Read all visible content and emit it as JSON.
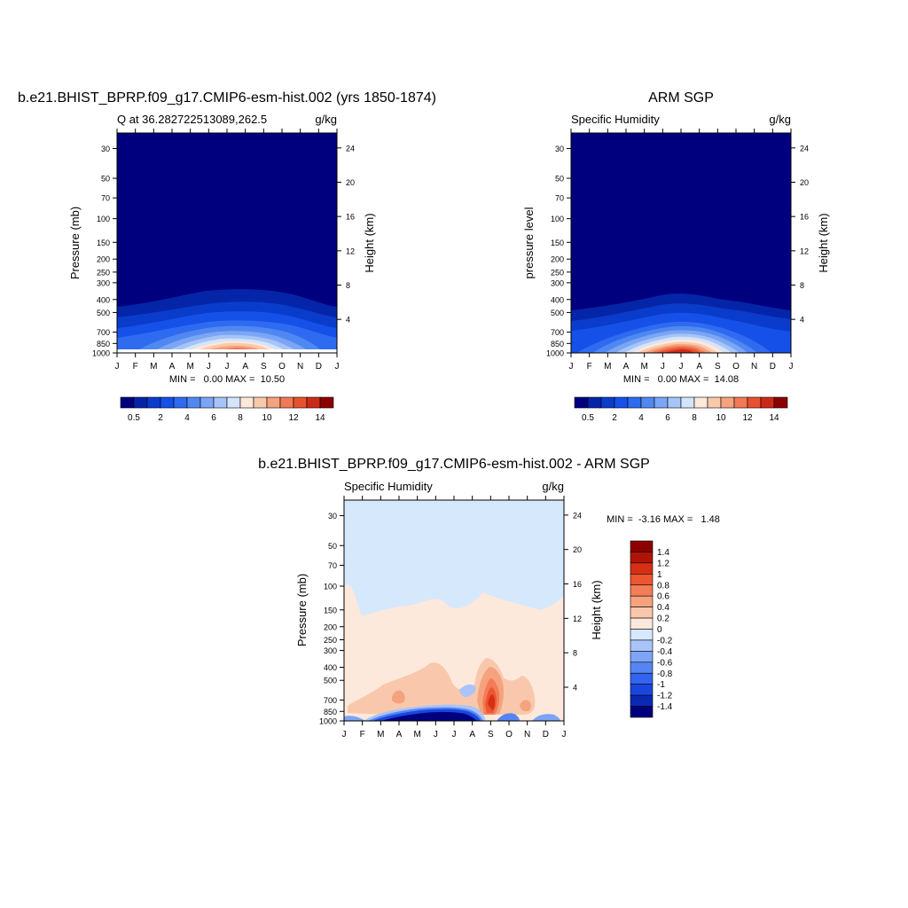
{
  "chart_data": [
    {
      "type": "heatmap",
      "title": "b.e21.BHIST_BPRP.f09_g17.CMIP6-esm-hist.002 (yrs 1850-1874)",
      "subtitle_left": "Q at 36.282722513089,262.5",
      "subtitle_right": "g/kg",
      "ylabel": "Pressure (mb)",
      "y2label": "Height (km)",
      "x_ticks": [
        "J",
        "F",
        "M",
        "A",
        "M",
        "J",
        "J",
        "A",
        "S",
        "O",
        "N",
        "D",
        "J"
      ],
      "y_ticks": [
        "30",
        "50",
        "70",
        "100",
        "150",
        "200",
        "250",
        "300",
        "400",
        "500",
        "700",
        "850",
        "1000"
      ],
      "y2_ticks": [
        "24",
        "20",
        "16",
        "12",
        "8",
        "4"
      ],
      "minmax_text": "MIN =   0.00 MAX =  10.50",
      "min": 0.0,
      "max": 10.5,
      "levels": [
        0.5,
        1,
        2,
        3,
        4,
        5,
        6,
        7,
        8,
        9,
        10,
        11,
        12,
        13,
        14
      ],
      "colorbar_labels": [
        "0.5",
        "2",
        "4",
        "6",
        "8",
        "10",
        "12",
        "14"
      ],
      "colors": [
        "#00007f",
        "#0525a8",
        "#0a3ccc",
        "#1551e8",
        "#2f6bf0",
        "#5088f2",
        "#7ba5f5",
        "#a6c4f7",
        "#d3e4fb",
        "#fde8da",
        "#f9c9ac",
        "#f5a27e",
        "#f07a55",
        "#e8512f",
        "#cc2a18",
        "#8c0000"
      ]
    },
    {
      "type": "heatmap",
      "title": "ARM SGP",
      "subtitle_left": "Specific Humidity",
      "subtitle_right": "g/kg",
      "ylabel": "pressure level",
      "y2label": "Height (km)",
      "x_ticks": [
        "J",
        "F",
        "M",
        "A",
        "M",
        "J",
        "J",
        "A",
        "S",
        "O",
        "N",
        "D",
        "J"
      ],
      "y_ticks": [
        "30",
        "50",
        "70",
        "100",
        "150",
        "200",
        "250",
        "300",
        "400",
        "500",
        "700",
        "850",
        "1000"
      ],
      "y2_ticks": [
        "24",
        "20",
        "16",
        "12",
        "8",
        "4"
      ],
      "minmax_text": "MIN =   0.00 MAX =  14.08",
      "min": 0.0,
      "max": 14.08,
      "levels": [
        0.5,
        1,
        2,
        3,
        4,
        5,
        6,
        7,
        8,
        9,
        10,
        11,
        12,
        13,
        14
      ],
      "colorbar_labels": [
        "0.5",
        "2",
        "4",
        "6",
        "8",
        "10",
        "12",
        "14"
      ],
      "colors": [
        "#00007f",
        "#0525a8",
        "#0a3ccc",
        "#1551e8",
        "#2f6bf0",
        "#5088f2",
        "#7ba5f5",
        "#a6c4f7",
        "#d3e4fb",
        "#fde8da",
        "#f9c9ac",
        "#f5a27e",
        "#f07a55",
        "#e8512f",
        "#cc2a18",
        "#8c0000"
      ]
    },
    {
      "type": "heatmap",
      "title": "b.e21.BHIST_BPRP.f09_g17.CMIP6-esm-hist.002 - ARM SGP",
      "subtitle_left": "Specific Humidity",
      "subtitle_right": "g/kg",
      "ylabel": "Pressure (mb)",
      "y2label": "Height (km)",
      "x_ticks": [
        "J",
        "F",
        "M",
        "A",
        "M",
        "J",
        "J",
        "A",
        "S",
        "O",
        "N",
        "D",
        "J"
      ],
      "y_ticks": [
        "30",
        "50",
        "70",
        "100",
        "150",
        "200",
        "250",
        "300",
        "400",
        "500",
        "700",
        "850",
        "1000"
      ],
      "y2_ticks": [
        "24",
        "20",
        "16",
        "12",
        "8",
        "4"
      ],
      "minmax_text": "MIN =  -3.16 MAX =   1.48",
      "min": -3.16,
      "max": 1.48,
      "levels": [
        -1.4,
        -1.2,
        -1,
        -0.8,
        -0.6,
        -0.4,
        -0.2,
        0,
        0.2,
        0.4,
        0.6,
        0.8,
        1,
        1.2,
        1.4
      ],
      "colorbar_labels": [
        "1.4",
        "1.2",
        "1",
        "0.8",
        "0.6",
        "0.4",
        "0.2",
        "0",
        "-0.2",
        "-0.4",
        "-0.6",
        "-0.8",
        "-1",
        "-1.2",
        "-1.4"
      ],
      "colors": [
        "#00007f",
        "#0a2ab5",
        "#1a46e0",
        "#3264f0",
        "#5585f2",
        "#7da4f5",
        "#a9c4f8",
        "#d6e8fc",
        "#fde9dc",
        "#f9c8ac",
        "#f5a37f",
        "#f27d58",
        "#ec5631",
        "#d72f16",
        "#b01406",
        "#8c0000"
      ]
    }
  ]
}
